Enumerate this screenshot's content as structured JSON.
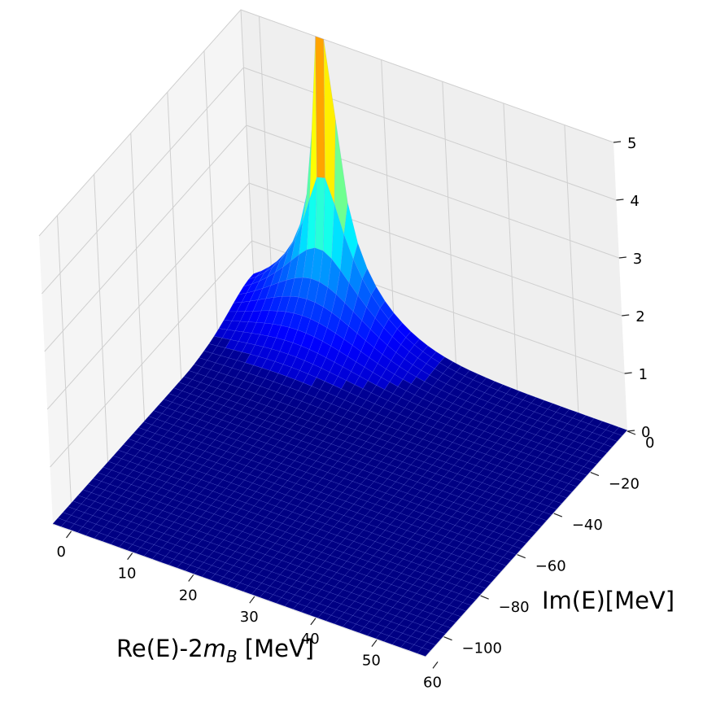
{
  "chart_data": {
    "type": "surface3d",
    "colormap": "jet",
    "x": {
      "label_prefix": "Re(E)-2",
      "label_math": "m",
      "label_math_sub": "B",
      "label_suffix": " [MeV]",
      "lim": [
        -3,
        58
      ],
      "ticks": [
        "0",
        "10",
        "20",
        "30",
        "40",
        "50",
        "60"
      ],
      "tick_values": [
        0,
        10,
        20,
        30,
        40,
        50,
        60
      ]
    },
    "y": {
      "label": "Im(E)[MeV]",
      "lim": [
        -110,
        0
      ],
      "ticks": [
        "0",
        "−20",
        "−40",
        "−60",
        "−80",
        "−100"
      ],
      "tick_values": [
        0,
        -20,
        -40,
        -60,
        -80,
        -100
      ]
    },
    "z": {
      "lim": [
        0,
        5
      ],
      "ticks": [
        "0",
        "1",
        "2",
        "3",
        "4",
        "5"
      ],
      "tick_values": [
        0,
        1,
        2,
        3,
        4,
        5
      ]
    },
    "surface_peak": {
      "note": "sharp pole near Re(E)-2mB = 10 MeV, Im(E) = 0, surface clipped above z = 5",
      "x": 10,
      "y": 0
    },
    "grid": true
  }
}
